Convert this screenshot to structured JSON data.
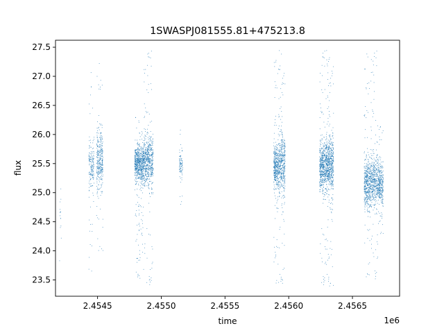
{
  "chart_data": {
    "type": "scatter",
    "title": "1SWASPJ081555.81+475213.8",
    "xlabel": "time",
    "ylabel": "flux",
    "x_offset_label": "1e6",
    "xlim": [
      2454170,
      2456870
    ],
    "ylim": [
      23.22,
      27.62
    ],
    "x_ticks": [
      2.4545,
      2.455,
      2.4555,
      2.456,
      2.4565
    ],
    "x_tick_labels": [
      "2.4545",
      "2.4550",
      "2.4555",
      "2.4560",
      "2.4565"
    ],
    "y_ticks": [
      23.5,
      24.0,
      24.5,
      25.0,
      25.5,
      26.0,
      26.5,
      27.0,
      27.5
    ],
    "y_tick_labels": [
      "23.5",
      "24.0",
      "24.5",
      "25.0",
      "25.5",
      "26.0",
      "26.5",
      "27.0",
      "27.5"
    ],
    "grid": false,
    "color": "#1f77b4",
    "clusters": [
      {
        "x_start": 2454200,
        "x_end": 2454215,
        "y_center": 24.5,
        "spread": 0.55,
        "y_min": 23.6,
        "y_max": 25.15,
        "count": 14
      },
      {
        "x_start": 2454430,
        "x_end": 2454470,
        "y_center": 25.45,
        "spread": 0.3,
        "y_min": 23.45,
        "y_max": 27.1,
        "count": 180
      },
      {
        "x_start": 2454490,
        "x_end": 2454540,
        "y_center": 25.55,
        "spread": 0.35,
        "y_min": 24.0,
        "y_max": 27.45,
        "count": 350
      },
      {
        "x_start": 2454790,
        "x_end": 2454860,
        "y_center": 25.5,
        "spread": 0.22,
        "y_min": 23.5,
        "y_max": 26.3,
        "count": 700
      },
      {
        "x_start": 2454860,
        "x_end": 2454935,
        "y_center": 25.55,
        "spread": 0.3,
        "y_min": 23.4,
        "y_max": 27.45,
        "count": 600
      },
      {
        "x_start": 2455140,
        "x_end": 2455165,
        "y_center": 25.5,
        "spread": 0.15,
        "y_min": 24.65,
        "y_max": 26.15,
        "count": 90
      },
      {
        "x_start": 2455880,
        "x_end": 2455920,
        "y_center": 25.45,
        "spread": 0.28,
        "y_min": 23.45,
        "y_max": 27.4,
        "count": 400
      },
      {
        "x_start": 2455920,
        "x_end": 2455970,
        "y_center": 25.5,
        "spread": 0.35,
        "y_min": 23.4,
        "y_max": 27.45,
        "count": 450
      },
      {
        "x_start": 2456240,
        "x_end": 2456290,
        "y_center": 25.45,
        "spread": 0.3,
        "y_min": 23.4,
        "y_max": 27.45,
        "count": 500
      },
      {
        "x_start": 2456290,
        "x_end": 2456350,
        "y_center": 25.5,
        "spread": 0.32,
        "y_min": 23.4,
        "y_max": 27.45,
        "count": 650
      },
      {
        "x_start": 2456590,
        "x_end": 2456640,
        "y_center": 25.15,
        "spread": 0.3,
        "y_min": 23.5,
        "y_max": 27.45,
        "count": 450
      },
      {
        "x_start": 2456640,
        "x_end": 2456700,
        "y_center": 25.2,
        "spread": 0.3,
        "y_min": 23.5,
        "y_max": 27.45,
        "count": 450
      },
      {
        "x_start": 2456700,
        "x_end": 2456740,
        "y_center": 25.15,
        "spread": 0.28,
        "y_min": 24.3,
        "y_max": 26.2,
        "count": 300
      }
    ]
  }
}
